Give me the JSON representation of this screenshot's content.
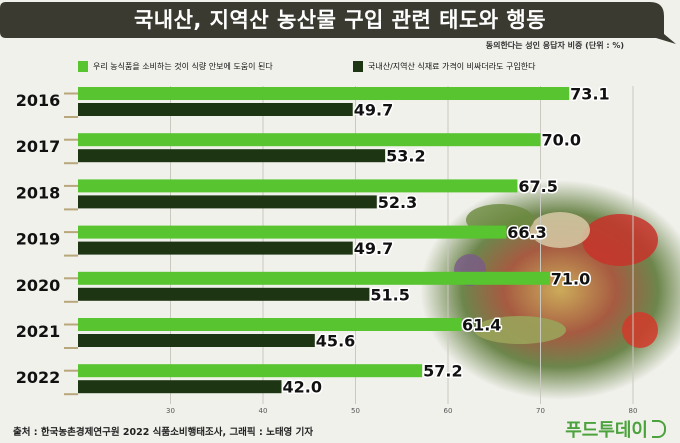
{
  "header": {
    "title": "국내산, 지역산 농산물 구입 관련 태도와 행동",
    "unit_note": "동의한다는 성인 응답자 비중 (단위 : %)"
  },
  "source": "출처 : 한국농촌경제연구원 2022 식품소비행태조사, 그래픽 : 노태영 기자",
  "logo": "푸드투데이",
  "colors": {
    "title_bg": "#3a3a30",
    "series_1": "#58c42f",
    "series_2": "#1d3512",
    "background": "#f1f1ec"
  },
  "chart_data": {
    "type": "bar",
    "orientation": "horizontal",
    "categories": [
      "2016",
      "2017",
      "2018",
      "2019",
      "2020",
      "2021",
      "2022"
    ],
    "series": [
      {
        "name": "우리 농식품을 소비하는 것이 식량 안보에 도움이 된다",
        "values": [
          73.1,
          70.0,
          67.5,
          66.3,
          71.0,
          61.4,
          57.2
        ],
        "color": "#58c42f"
      },
      {
        "name": "국내산/지역산 식재료 가격이 비싸더라도 구입한다",
        "values": [
          49.7,
          53.2,
          52.3,
          49.7,
          51.5,
          45.6,
          42.0
        ],
        "color": "#1d3512"
      }
    ],
    "xticks": [
      "30",
      "40",
      "50",
      "60",
      "70",
      "80"
    ],
    "xlim": [
      20,
      85
    ],
    "legend_position": "top",
    "grid": true
  }
}
